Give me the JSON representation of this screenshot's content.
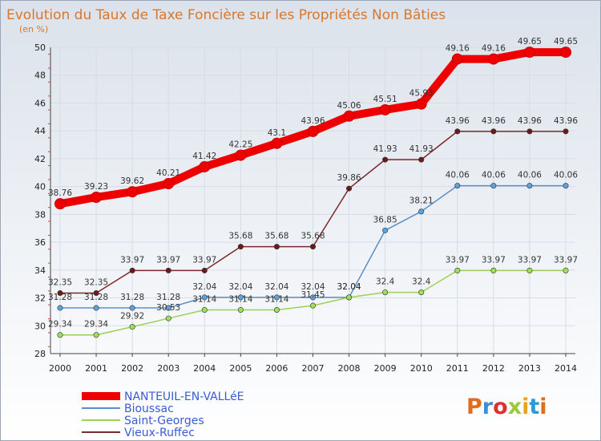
{
  "chart_data": {
    "type": "line",
    "title": "Evolution du Taux de Taxe Foncière sur les Propriétés Non Bâties",
    "unit_label": "(en %)",
    "xlabel": "",
    "ylabel": "",
    "ylim": [
      28,
      50
    ],
    "y_ticks": [
      28,
      30,
      32,
      34,
      36,
      38,
      40,
      42,
      44,
      46,
      48,
      50
    ],
    "grid": true,
    "legend_position": "bottom-left",
    "categories": [
      "2000",
      "2001",
      "2002",
      "2003",
      "2004",
      "2005",
      "2006",
      "2007",
      "2008",
      "2009",
      "2010",
      "2011",
      "2012",
      "2013",
      "2014"
    ],
    "series": [
      {
        "name": "NANTEUIL-EN-VALLéE",
        "color": "#ee0000",
        "fill": "#ee0000",
        "values": [
          38.76,
          39.23,
          39.62,
          40.21,
          41.42,
          42.25,
          43.1,
          43.96,
          45.06,
          45.51,
          45.93,
          49.16,
          49.16,
          49.65,
          49.65
        ],
        "labels": [
          "38.76",
          "39.23",
          "39.62",
          "40.21",
          "41.42",
          "42.25",
          "43.1",
          "43.96",
          "45.06",
          "45.51",
          "45.93",
          "49.16",
          "49.16",
          "49.65",
          "49.65"
        ]
      },
      {
        "name": "Bioussac",
        "color": "#5b8fc7",
        "fill": "#5aa4e0",
        "values": [
          31.28,
          31.28,
          31.28,
          31.28,
          32.04,
          32.04,
          32.04,
          32.04,
          32.04,
          36.85,
          38.21,
          40.06,
          40.06,
          40.06,
          40.06
        ],
        "labels": [
          "31.28",
          "31.28",
          "31.28",
          "31.28",
          "32.04",
          "32.04",
          "32.04",
          "32.04",
          "32.04",
          "36.85",
          "38.21",
          "40.06",
          "40.06",
          "40.06",
          "40.06"
        ]
      },
      {
        "name": "Saint-Georges",
        "color": "#9ad158",
        "fill": "#9ee05a",
        "values": [
          29.34,
          29.34,
          29.92,
          30.53,
          31.14,
          31.14,
          31.14,
          31.45,
          32.04,
          32.4,
          32.4,
          33.97,
          33.97,
          33.97,
          33.97
        ],
        "labels": [
          "29.34",
          "29.34",
          "29.92",
          "30.53",
          "31.14",
          "31.14",
          "31.14",
          "31.45",
          "32.04",
          "32.4",
          "32.4",
          "33.97",
          "33.97",
          "33.97",
          "33.97"
        ]
      },
      {
        "name": "Vieux-Ruffec",
        "color": "#7a2a2a",
        "fill": "#6a1a1a",
        "values": [
          32.35,
          32.35,
          33.97,
          33.97,
          33.97,
          35.68,
          35.68,
          35.68,
          39.86,
          41.93,
          41.93,
          43.96,
          43.96,
          43.96,
          43.96
        ],
        "labels": [
          "32.35",
          "32.35",
          "33.97",
          "33.97",
          "33.97",
          "35.68",
          "35.68",
          "35.68",
          "39.86",
          "41.93",
          "41.93",
          "43.96",
          "43.96",
          "43.96",
          "43.96"
        ]
      }
    ]
  },
  "logo": {
    "text": "Proxiti",
    "colors": [
      "#e06c1e",
      "#3a8fd6",
      "#e03030",
      "#9bc93a",
      "#e9a320",
      "#2c9ad8",
      "#e06c1e"
    ]
  }
}
